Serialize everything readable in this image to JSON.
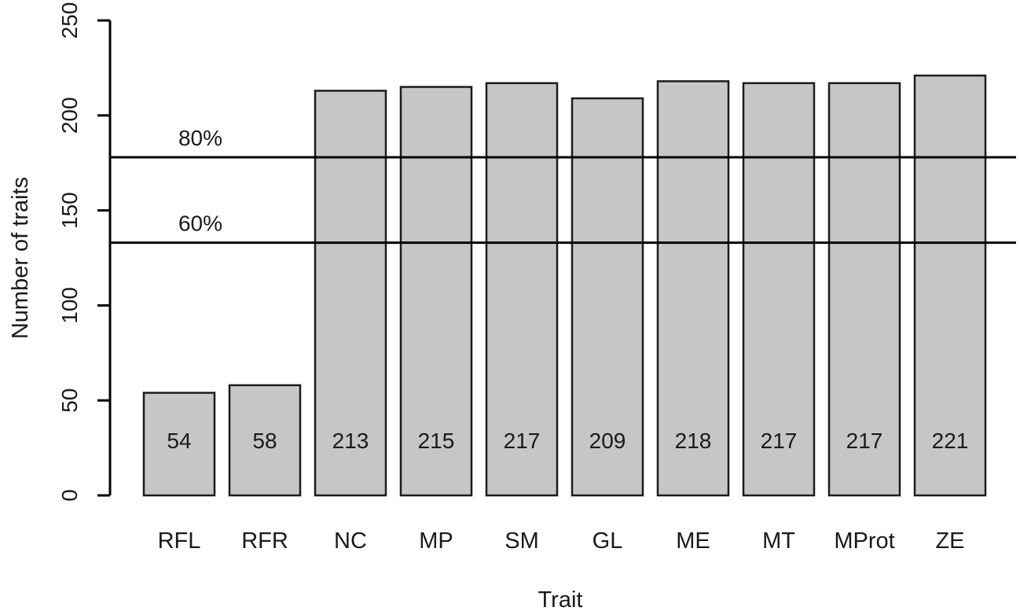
{
  "chart_data": {
    "type": "bar",
    "title": "",
    "xlabel": "Trait",
    "ylabel": "Number of traits",
    "categories": [
      "RFL",
      "RFR",
      "NC",
      "MP",
      "SM",
      "GL",
      "ME",
      "MT",
      "MProt",
      "ZE"
    ],
    "values": [
      54,
      58,
      213,
      215,
      217,
      209,
      218,
      217,
      217,
      221
    ],
    "yticks": [
      0,
      50,
      100,
      150,
      200,
      250
    ],
    "ylim": [
      0,
      250
    ],
    "reference_lines": [
      {
        "label": "80%",
        "value": 178
      },
      {
        "label": "60%",
        "value": 133
      }
    ],
    "grid": false,
    "legend": null,
    "colors": {
      "bar_fill": "#c5c6c5",
      "bar_border": "#1c1c1c",
      "axis": "#000000",
      "reference_line": "#000000",
      "background": "#ffffff",
      "text": "#1a1a1a"
    }
  }
}
